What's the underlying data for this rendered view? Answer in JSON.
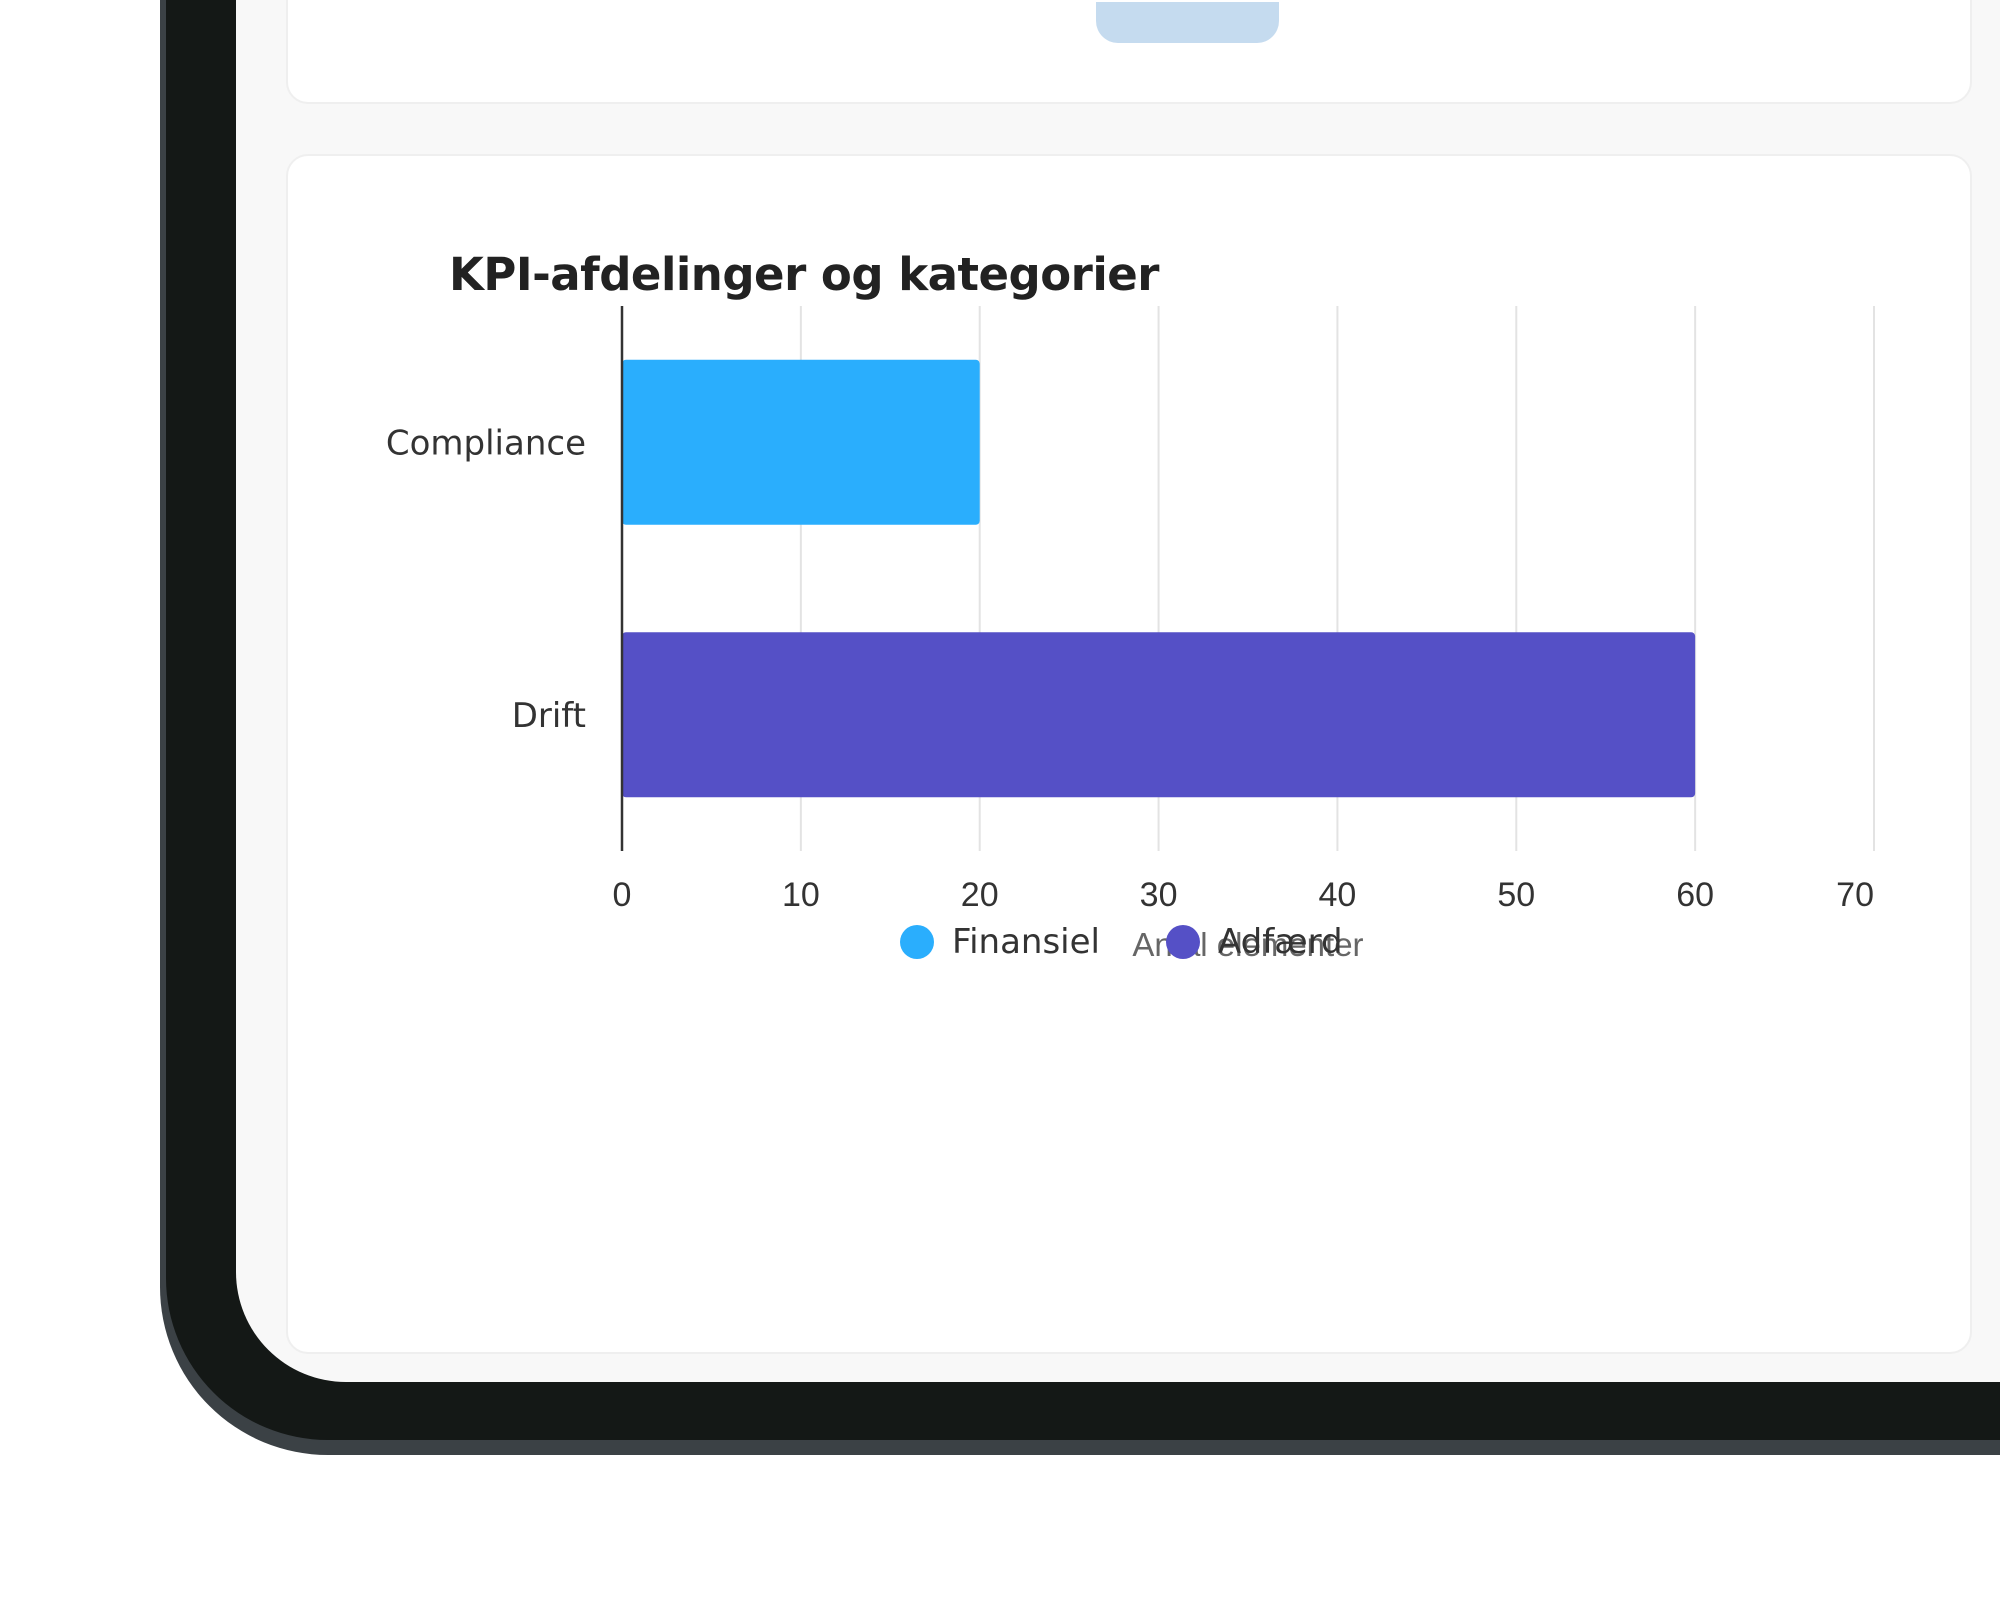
{
  "chart_card": {
    "title": "KPI-afdelinger og kategorier"
  },
  "chart_data": {
    "type": "bar",
    "orientation": "horizontal",
    "title": "KPI-afdelinger og kategorier",
    "categories": [
      "Compliance",
      "Drift"
    ],
    "series": [
      {
        "name": "Finansiel",
        "color": "#2aaefd",
        "values": [
          20,
          null
        ]
      },
      {
        "name": "Adfærd",
        "color": "#5550c6",
        "values": [
          null,
          60
        ]
      }
    ],
    "xlabel": "Antal elementer",
    "ylabel": "",
    "xlim": [
      0,
      70
    ],
    "x_ticks": [
      "0",
      "10",
      "20",
      "30",
      "40",
      "50",
      "60",
      "70"
    ],
    "grid": true,
    "legend_position": "bottom"
  },
  "colors": {
    "finansiel": "#2aaefd",
    "adfaerd": "#5550c6",
    "scroll_indicator": "#c5dbef",
    "device_frame": "#141816"
  }
}
